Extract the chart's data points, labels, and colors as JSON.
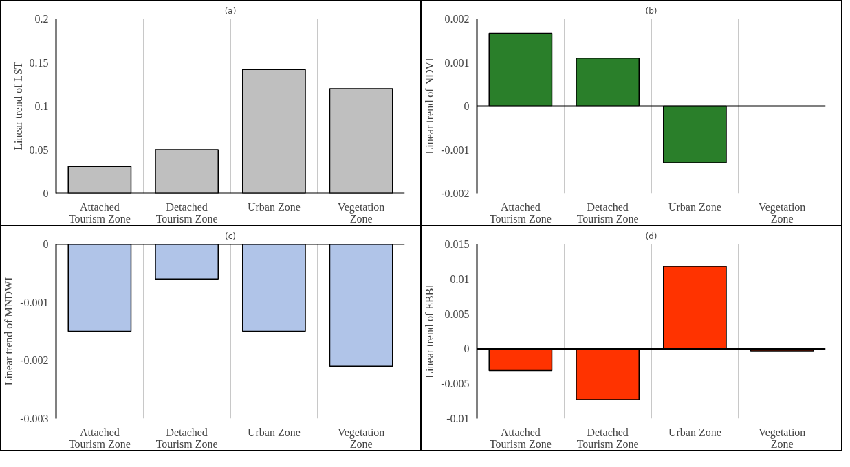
{
  "chart_data": [
    {
      "type": "bar",
      "title": "(a)",
      "ylabel": "Linear trend of LST",
      "categories": [
        "Attached Tourism Zone",
        "Detached Tourism Zone",
        "Urban Zone",
        "Vegetation Zone"
      ],
      "values": [
        0.031,
        0.05,
        0.142,
        0.12
      ],
      "color": "#bfbfbf",
      "ylim": [
        0,
        0.2
      ],
      "yticks": [
        0,
        0.05,
        0.1,
        0.15,
        0.2
      ],
      "grid": "x"
    },
    {
      "type": "bar",
      "title": "(b)",
      "ylabel": "Linear trend of NDVI",
      "categories": [
        "Attached Tourism Zone",
        "Detached Tourism Zone",
        "Urban Zone",
        "Vegetation Zone"
      ],
      "values": [
        0.00167,
        0.0011,
        -0.0013,
        null
      ],
      "color": "#2a7f2a",
      "ylim": [
        -0.002,
        0.002
      ],
      "yticks": [
        -0.002,
        -0.001,
        0,
        0.001,
        0.002
      ],
      "grid": "x"
    },
    {
      "type": "bar",
      "title": "(c)",
      "ylabel": "Linear trend of MNDWI",
      "categories": [
        "Attached Tourism Zone",
        "Detached Tourism Zone",
        "Urban Zone",
        "Vegetation Zone"
      ],
      "values": [
        -0.0015,
        -0.0006,
        -0.0015,
        -0.0021
      ],
      "color": "#b0c4e8",
      "ylim": [
        -0.003,
        0
      ],
      "yticks": [
        -0.003,
        -0.002,
        -0.001,
        0
      ],
      "grid": "x"
    },
    {
      "type": "bar",
      "title": "(d)",
      "ylabel": "Linear trend of EBBI",
      "categories": [
        "Attached Tourism Zone",
        "Detached Tourism Zone",
        "Urban Zone",
        "Vegetation Zone"
      ],
      "values": [
        -0.0031,
        -0.0073,
        0.0118,
        -0.0003
      ],
      "color": "#ff3300",
      "ylim": [
        -0.01,
        0.015
      ],
      "yticks": [
        -0.01,
        -0.005,
        0,
        0.005,
        0.01,
        0.015
      ],
      "grid": "x"
    }
  ]
}
